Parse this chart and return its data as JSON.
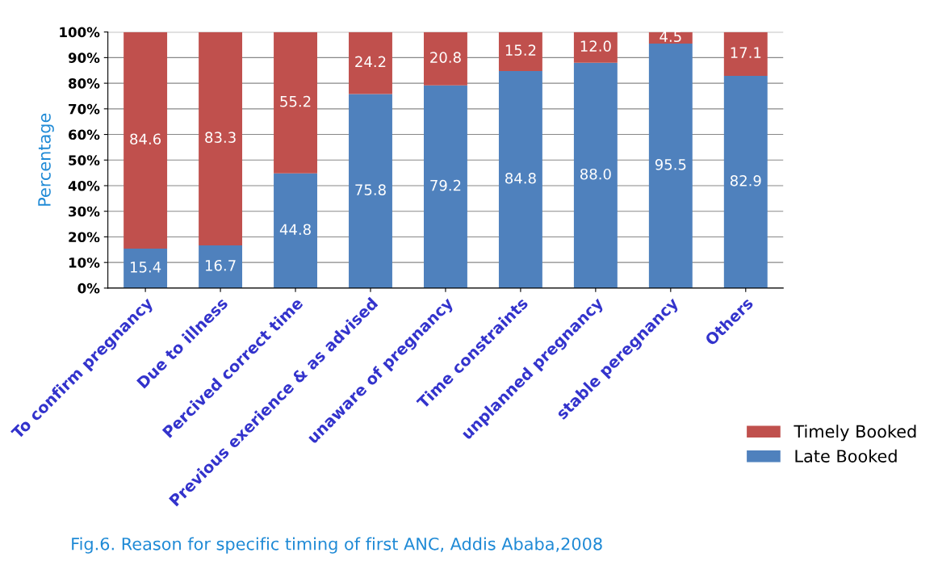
{
  "chart_data": {
    "type": "bar",
    "stacked": true,
    "title": "Fig.6. Reason for specific timing of first ANC, Addis Ababa,2008",
    "ylabel": "Percentage",
    "categories": [
      "To confirm pregnancy",
      "Due to illness",
      "Percived correct time",
      "Previous exerience & as advised",
      "unaware of pregnancy",
      "Time constraints",
      "unplanned pregnancy",
      "stable peregnancy",
      "Others"
    ],
    "series": [
      {
        "name": "Late Booked",
        "color": "#4f81bd",
        "values": [
          15.4,
          16.7,
          44.8,
          75.8,
          79.2,
          84.8,
          88.0,
          95.5,
          82.9
        ],
        "value_labels": [
          "15.4",
          "16.7",
          "44.8",
          "75.8",
          "79.2",
          "84.8",
          "88.0",
          "95.5",
          "82.9"
        ]
      },
      {
        "name": "Timely Booked",
        "color": "#c0504d",
        "values": [
          84.6,
          83.3,
          55.2,
          24.2,
          20.8,
          15.2,
          12.0,
          4.5,
          17.1
        ],
        "value_labels": [
          "84.6",
          "83.3",
          "55.2",
          "24.2",
          "20.8",
          "15.2",
          "12.0",
          "4.5",
          "17.1"
        ]
      }
    ],
    "ylim": [
      0,
      100
    ],
    "yticks": [
      {
        "value": 0,
        "label": "0%"
      },
      {
        "value": 10,
        "label": "10%"
      },
      {
        "value": 20,
        "label": "20%"
      },
      {
        "value": 30,
        "label": "30%"
      },
      {
        "value": 40,
        "label": "40%"
      },
      {
        "value": 50,
        "label": "50%"
      },
      {
        "value": 60,
        "label": "60%"
      },
      {
        "value": 70,
        "label": "70%"
      },
      {
        "value": 80,
        "label": "80%"
      },
      {
        "value": 90,
        "label": "90%"
      },
      {
        "value": 100,
        "label": "100%"
      }
    ],
    "grid": "y",
    "legend": "right"
  }
}
